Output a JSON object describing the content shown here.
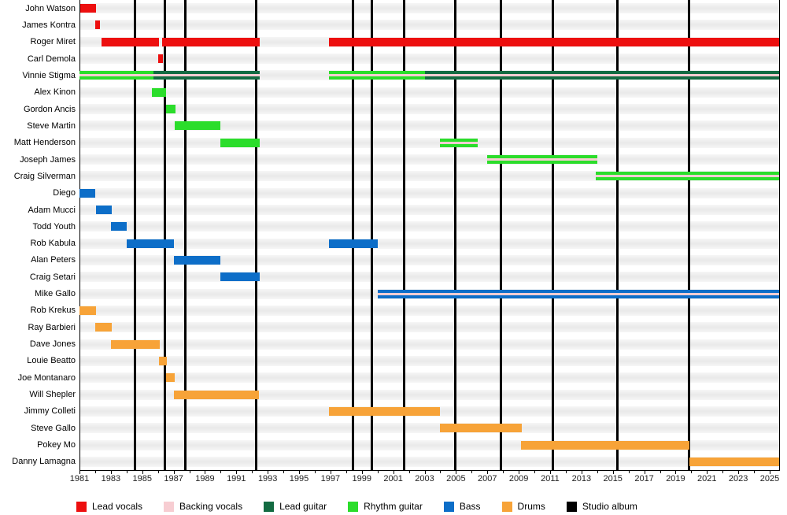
{
  "chart_data": {
    "type": "gantt-timeline",
    "x_axis": {
      "min": 1981,
      "max": 2025.6,
      "label_years": [
        1981,
        1983,
        1985,
        1987,
        1989,
        1991,
        1993,
        1995,
        1997,
        1999,
        2001,
        2003,
        2005,
        2007,
        2009,
        2011,
        2013,
        2015,
        2017,
        2019,
        2021,
        2023,
        2025
      ],
      "minor_tick_every_years": 1
    },
    "roles": [
      {
        "id": "lead_vocals",
        "label": "Lead vocals",
        "color": "#ed0f0f"
      },
      {
        "id": "backing_vocals",
        "label": "Backing vocals",
        "color": "#f7cdd2"
      },
      {
        "id": "lead_guitar",
        "label": "Lead guitar",
        "color": "#136b42"
      },
      {
        "id": "rhythm_guitar",
        "label": "Rhythm guitar",
        "color": "#2bdd2b"
      },
      {
        "id": "bass",
        "label": "Bass",
        "color": "#0d6ec8"
      },
      {
        "id": "drums",
        "label": "Drums",
        "color": "#f7a338"
      },
      {
        "id": "studio_album",
        "label": "Studio album",
        "color": "#000000"
      }
    ],
    "studio_album_years": [
      1984.55,
      1986.45,
      1987.75,
      1992.25,
      1998.45,
      1999.65,
      2001.7,
      2004.95,
      2007.85,
      2011.2,
      2015.3,
      2019.85
    ],
    "members": [
      {
        "name": "John Watson",
        "segments": [
          {
            "role": "lead_vocals",
            "from": 1981.05,
            "to": 1982.05
          }
        ]
      },
      {
        "name": "James Kontra",
        "segments": [
          {
            "role": "lead_vocals",
            "from": 1982.0,
            "to": 1982.3
          }
        ]
      },
      {
        "name": "Roger Miret",
        "segments": [
          {
            "role": "lead_vocals",
            "from": 1982.4,
            "to": 1986.05
          },
          {
            "role": "lead_vocals",
            "from": 1986.25,
            "to": 1992.5
          },
          {
            "role": "lead_vocals",
            "from": 1996.9,
            "to": 2025.6
          }
        ]
      },
      {
        "name": "Carl Demola",
        "segments": [
          {
            "role": "lead_vocals",
            "from": 1986.0,
            "to": 1986.3
          }
        ]
      },
      {
        "name": "Vinnie Stigma",
        "segments": [
          {
            "role": "rhythm_guitar",
            "from": 1981.0,
            "to": 1985.7
          },
          {
            "role": "lead_guitar",
            "from": 1985.7,
            "to": 1992.5
          },
          {
            "role": "rhythm_guitar",
            "from": 1996.9,
            "to": 2003.0
          },
          {
            "role": "lead_guitar",
            "from": 2003.0,
            "to": 2025.6
          }
        ],
        "backing_vocals": [
          {
            "from": 1981.0,
            "to": 1992.5
          },
          {
            "from": 1996.9,
            "to": 2025.6
          }
        ]
      },
      {
        "name": "Alex Kinon",
        "segments": [
          {
            "role": "rhythm_guitar",
            "from": 1985.6,
            "to": 1986.5
          }
        ]
      },
      {
        "name": "Gordon Ancis",
        "segments": [
          {
            "role": "rhythm_guitar",
            "from": 1986.5,
            "to": 1987.1
          }
        ]
      },
      {
        "name": "Steve Martin",
        "segments": [
          {
            "role": "rhythm_guitar",
            "from": 1987.05,
            "to": 1990.0
          }
        ]
      },
      {
        "name": "Matt Henderson",
        "segments": [
          {
            "role": "rhythm_guitar",
            "from": 1990.0,
            "to": 1992.5
          },
          {
            "role": "rhythm_guitar",
            "from": 2004.0,
            "to": 2006.4
          }
        ],
        "backing_vocals": [
          {
            "from": 2004.0,
            "to": 2006.4
          }
        ]
      },
      {
        "name": "Joseph James",
        "segments": [
          {
            "role": "rhythm_guitar",
            "from": 2007.0,
            "to": 2014.0
          }
        ],
        "backing_vocals": [
          {
            "from": 2007.0,
            "to": 2014.0
          }
        ]
      },
      {
        "name": "Craig Silverman",
        "segments": [
          {
            "role": "rhythm_guitar",
            "from": 2013.9,
            "to": 2025.6
          }
        ],
        "backing_vocals": [
          {
            "from": 2013.9,
            "to": 2025.6
          }
        ]
      },
      {
        "name": "Diego",
        "segments": [
          {
            "role": "bass",
            "from": 1981.0,
            "to": 1982.0
          }
        ]
      },
      {
        "name": "Adam Mucci",
        "segments": [
          {
            "role": "bass",
            "from": 1982.05,
            "to": 1983.05
          }
        ]
      },
      {
        "name": "Todd Youth",
        "segments": [
          {
            "role": "bass",
            "from": 1983.0,
            "to": 1984.0
          }
        ]
      },
      {
        "name": "Rob Kabula",
        "segments": [
          {
            "role": "bass",
            "from": 1984.0,
            "to": 1987.0
          },
          {
            "role": "bass",
            "from": 1996.9,
            "to": 2000.0
          }
        ]
      },
      {
        "name": "Alan Peters",
        "segments": [
          {
            "role": "bass",
            "from": 1987.0,
            "to": 1990.0
          }
        ]
      },
      {
        "name": "Craig Setari",
        "segments": [
          {
            "role": "bass",
            "from": 1990.0,
            "to": 1992.5
          }
        ]
      },
      {
        "name": "Mike Gallo",
        "segments": [
          {
            "role": "bass",
            "from": 2000.0,
            "to": 2025.6
          }
        ],
        "backing_vocals": [
          {
            "from": 2000.0,
            "to": 2025.6
          }
        ]
      },
      {
        "name": "Rob Krekus",
        "segments": [
          {
            "role": "drums",
            "from": 1981.0,
            "to": 1982.05
          }
        ]
      },
      {
        "name": "Ray Barbieri",
        "segments": [
          {
            "role": "drums",
            "from": 1982.0,
            "to": 1983.05
          }
        ]
      },
      {
        "name": "Dave Jones",
        "segments": [
          {
            "role": "drums",
            "from": 1983.0,
            "to": 1986.1
          }
        ]
      },
      {
        "name": "Louie Beatto",
        "segments": [
          {
            "role": "drums",
            "from": 1986.05,
            "to": 1986.55
          }
        ]
      },
      {
        "name": "Joe Montanaro",
        "segments": [
          {
            "role": "drums",
            "from": 1986.5,
            "to": 1987.05
          }
        ]
      },
      {
        "name": "Will Shepler",
        "segments": [
          {
            "role": "drums",
            "from": 1987.0,
            "to": 1992.45
          }
        ]
      },
      {
        "name": "Jimmy Colleti",
        "segments": [
          {
            "role": "drums",
            "from": 1996.9,
            "to": 2004.0
          }
        ]
      },
      {
        "name": "Steve Gallo",
        "segments": [
          {
            "role": "drums",
            "from": 2004.0,
            "to": 2009.2
          }
        ]
      },
      {
        "name": "Pokey Mo",
        "segments": [
          {
            "role": "drums",
            "from": 2009.15,
            "to": 2019.9
          }
        ]
      },
      {
        "name": "Danny Lamagna",
        "segments": [
          {
            "role": "drums",
            "from": 2019.9,
            "to": 2025.6
          }
        ]
      }
    ]
  },
  "legend": {
    "order": [
      "lead_vocals",
      "backing_vocals",
      "lead_guitar",
      "rhythm_guitar",
      "bass",
      "drums",
      "studio_album"
    ]
  }
}
